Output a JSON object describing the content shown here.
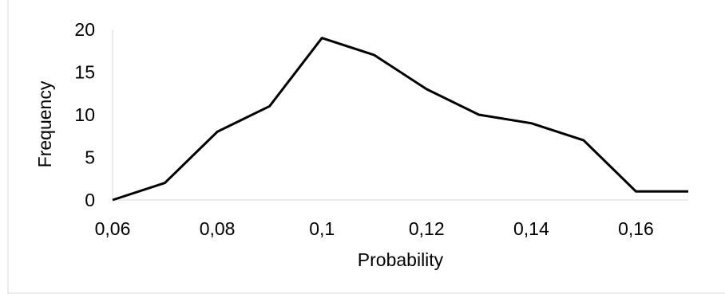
{
  "chart_data": {
    "type": "line",
    "title": "",
    "xlabel": "Probability",
    "ylabel": "Frequency",
    "x": [
      0.06,
      0.07,
      0.08,
      0.09,
      0.1,
      0.11,
      0.12,
      0.13,
      0.14,
      0.15,
      0.16,
      0.17
    ],
    "series": [
      {
        "values": [
          0,
          2,
          8,
          11,
          19,
          17,
          13,
          10,
          9,
          7,
          1,
          1
        ]
      }
    ],
    "xlim": [
      0.06,
      0.17
    ],
    "ylim": [
      0,
      20
    ],
    "x_ticks": [
      0.06,
      0.08,
      0.1,
      0.12,
      0.14,
      0.16
    ],
    "x_tick_labels": [
      "0,06",
      "0,08",
      "0,1",
      "0,12",
      "0,14",
      "0,16"
    ],
    "y_ticks": [
      0,
      5,
      10,
      15,
      20
    ],
    "y_tick_labels": [
      "0",
      "5",
      "10",
      "15",
      "20"
    ],
    "grid": false,
    "legend": "none",
    "line_color": "#000000"
  }
}
